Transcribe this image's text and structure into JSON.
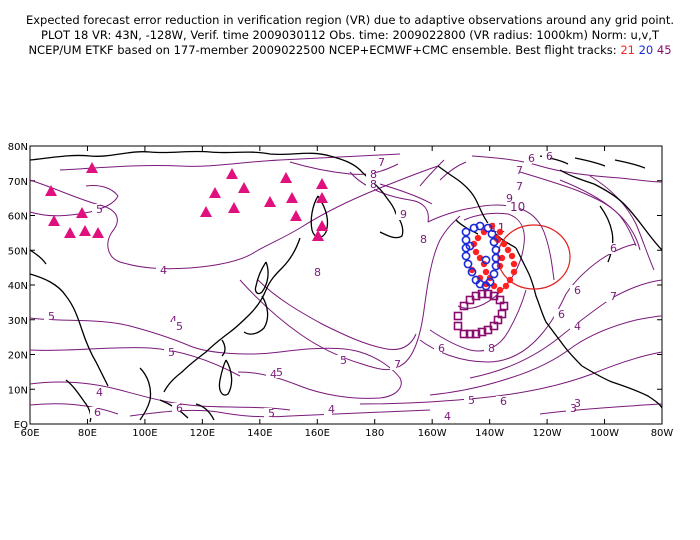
{
  "header": {
    "line1": "Expected forecast error reduction in verification region (VR) due to adaptive observations around any grid point.",
    "line2": "PLOT 18 VR: 43N, -128W, Verif. time 2009030112 Obs. time: 2009022800 (VR radius: 1000km) Norm: u,v,T",
    "line3_prefix": "NCEP/UM ETKF based on 177-member 2009022500 NCEP+ECMWF+CMC ensemble. Best flight tracks:",
    "track_a": "21",
    "track_b": "20",
    "track_c": "45"
  },
  "map": {
    "lat_labels": [
      "80N",
      "70N",
      "60N",
      "50N",
      "40N",
      "30N",
      "20N",
      "10N",
      "EQ"
    ],
    "lon_labels": [
      "60E",
      "80E",
      "100E",
      "120E",
      "140E",
      "160E",
      "180",
      "160W",
      "140W",
      "120W",
      "100W",
      "80W"
    ],
    "contour_labels": [
      "7",
      "6",
      "8",
      "6",
      "7",
      "5",
      "9",
      "10",
      "8",
      "11",
      "4",
      "6",
      "4",
      "8",
      "7",
      "5",
      "5",
      "5",
      "5",
      "6",
      "6",
      "6",
      "8",
      "4",
      "4",
      "5",
      "5",
      "4",
      "4",
      "6",
      "7",
      "9",
      "7",
      "8",
      "5",
      "6",
      "6",
      "3",
      "3",
      "4"
    ],
    "colors": {
      "contour": "#7a1a7a",
      "track_red": "#ff2020",
      "track_blue": "#1a2ad8",
      "track_purple": "#8a0b6e",
      "triangles": "#e0107e",
      "vr_circle": "#e02020",
      "coast": "#000000"
    },
    "verification_region": {
      "lat": 43,
      "lon": -128,
      "radius_km": 1000
    }
  }
}
